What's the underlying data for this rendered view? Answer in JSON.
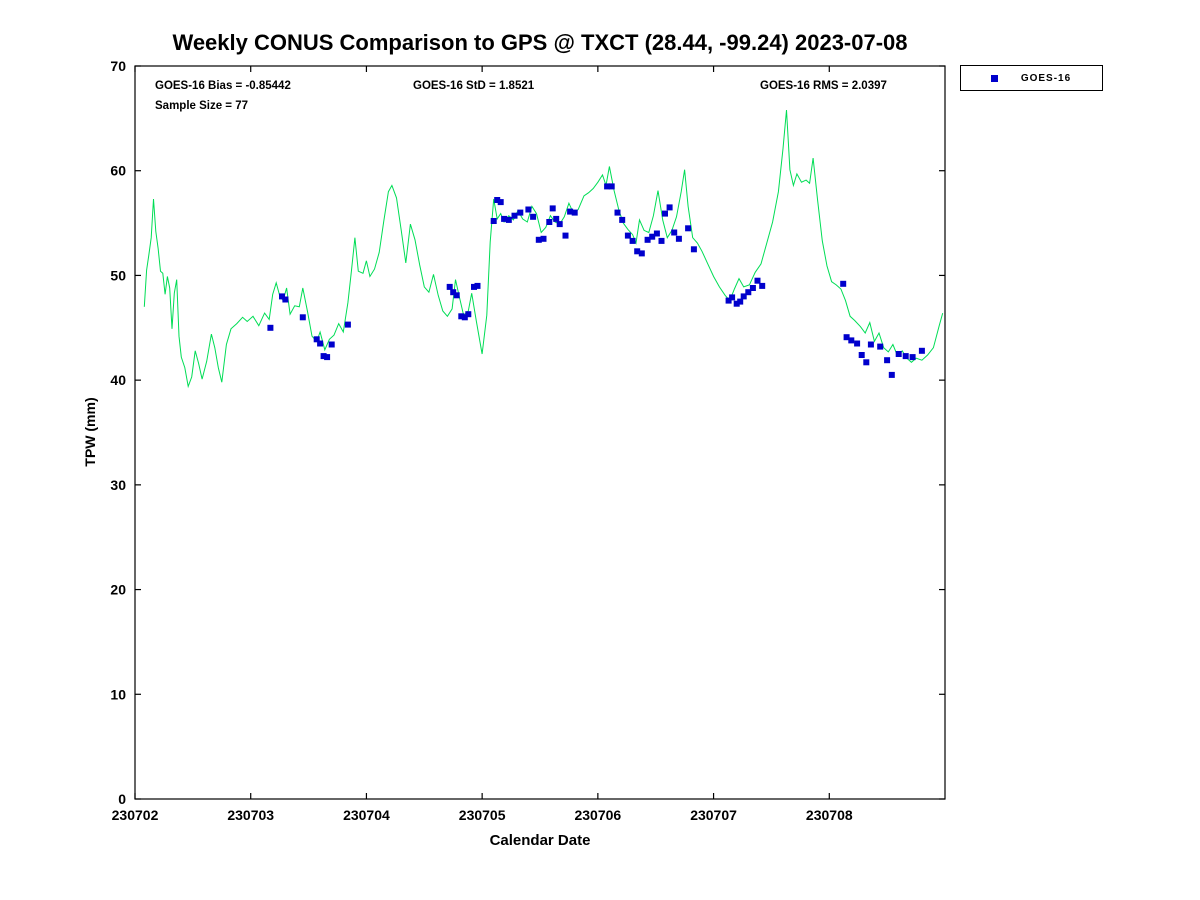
{
  "chart_data": {
    "type": "line+scatter",
    "title": "Weekly CONUS Comparison to GPS @ TXCT (28.44, -99.24) 2023-07-08",
    "xlabel": "Calendar Date",
    "ylabel": "TPW (mm)",
    "xlim": [
      0,
      7
    ],
    "ylim": [
      0,
      70
    ],
    "x_ticks": [
      0,
      1,
      2,
      3,
      4,
      5,
      6
    ],
    "x_tick_labels": [
      "230702",
      "230703",
      "230704",
      "230705",
      "230706",
      "230707",
      "230708"
    ],
    "y_ticks": [
      0,
      10,
      20,
      30,
      40,
      50,
      60,
      70
    ],
    "y_tick_labels": [
      "0",
      "10",
      "20",
      "30",
      "40",
      "50",
      "60",
      "70"
    ],
    "grid": false,
    "axis_color": "#000000",
    "annotations": {
      "bias": "GOES-16 Bias = -0.85442",
      "std": "GOES-16 StD = 1.8521",
      "rms": "GOES-16 RMS = 2.0397",
      "sample_size": "Sample Size = 77"
    },
    "legend": {
      "position": "outside-top-right",
      "entries": [
        {
          "label": "GOES-16",
          "marker": "square",
          "color": "#0000cc"
        }
      ]
    },
    "series": [
      {
        "name": "GPS",
        "type": "line",
        "color": "#00dd55",
        "width": 1,
        "points": [
          [
            0.08,
            47.0
          ],
          [
            0.1,
            50.5
          ],
          [
            0.12,
            52.0
          ],
          [
            0.14,
            53.6
          ],
          [
            0.16,
            57.3
          ],
          [
            0.18,
            54.2
          ],
          [
            0.2,
            52.6
          ],
          [
            0.22,
            50.4
          ],
          [
            0.24,
            50.2
          ],
          [
            0.26,
            48.2
          ],
          [
            0.28,
            49.9
          ],
          [
            0.3,
            48.8
          ],
          [
            0.32,
            44.9
          ],
          [
            0.34,
            48.3
          ],
          [
            0.36,
            49.6
          ],
          [
            0.38,
            44.2
          ],
          [
            0.4,
            42.2
          ],
          [
            0.43,
            41.2
          ],
          [
            0.46,
            39.4
          ],
          [
            0.49,
            40.3
          ],
          [
            0.52,
            42.8
          ],
          [
            0.55,
            41.6
          ],
          [
            0.58,
            40.1
          ],
          [
            0.62,
            41.8
          ],
          [
            0.66,
            44.4
          ],
          [
            0.69,
            43.1
          ],
          [
            0.72,
            41.2
          ],
          [
            0.75,
            39.8
          ],
          [
            0.79,
            43.4
          ],
          [
            0.83,
            44.9
          ],
          [
            0.88,
            45.4
          ],
          [
            0.93,
            46.0
          ],
          [
            0.97,
            45.6
          ],
          [
            1.02,
            46.1
          ],
          [
            1.07,
            45.2
          ],
          [
            1.12,
            46.4
          ],
          [
            1.16,
            45.8
          ],
          [
            1.19,
            48.2
          ],
          [
            1.22,
            49.3
          ],
          [
            1.25,
            48.1
          ],
          [
            1.28,
            47.6
          ],
          [
            1.31,
            48.8
          ],
          [
            1.34,
            46.3
          ],
          [
            1.38,
            47.1
          ],
          [
            1.42,
            47.0
          ],
          [
            1.45,
            48.8
          ],
          [
            1.49,
            46.6
          ],
          [
            1.53,
            44.2
          ],
          [
            1.57,
            43.7
          ],
          [
            1.6,
            44.6
          ],
          [
            1.64,
            42.9
          ],
          [
            1.68,
            43.9
          ],
          [
            1.72,
            44.3
          ],
          [
            1.76,
            45.4
          ],
          [
            1.8,
            44.6
          ],
          [
            1.84,
            47.4
          ],
          [
            1.87,
            50.4
          ],
          [
            1.9,
            53.6
          ],
          [
            1.93,
            50.4
          ],
          [
            1.97,
            50.2
          ],
          [
            2.0,
            51.4
          ],
          [
            2.03,
            49.9
          ],
          [
            2.07,
            50.6
          ],
          [
            2.11,
            52.2
          ],
          [
            2.15,
            55.2
          ],
          [
            2.19,
            58.0
          ],
          [
            2.22,
            58.6
          ],
          [
            2.26,
            57.4
          ],
          [
            2.3,
            54.4
          ],
          [
            2.34,
            51.2
          ],
          [
            2.38,
            54.9
          ],
          [
            2.42,
            53.4
          ],
          [
            2.46,
            51.0
          ],
          [
            2.5,
            48.9
          ],
          [
            2.54,
            48.4
          ],
          [
            2.58,
            50.1
          ],
          [
            2.62,
            48.1
          ],
          [
            2.66,
            46.6
          ],
          [
            2.7,
            46.1
          ],
          [
            2.74,
            46.8
          ],
          [
            2.77,
            49.6
          ],
          [
            2.8,
            48.1
          ],
          [
            2.84,
            46.2
          ],
          [
            2.88,
            46.6
          ],
          [
            2.91,
            48.3
          ],
          [
            2.95,
            45.6
          ],
          [
            3.0,
            42.5
          ],
          [
            3.04,
            46.2
          ],
          [
            3.07,
            53.2
          ],
          [
            3.1,
            57.3
          ],
          [
            3.13,
            55.4
          ],
          [
            3.16,
            55.9
          ],
          [
            3.19,
            55.1
          ],
          [
            3.23,
            55.7
          ],
          [
            3.27,
            55.3
          ],
          [
            3.31,
            56.2
          ],
          [
            3.35,
            55.4
          ],
          [
            3.39,
            55.1
          ],
          [
            3.43,
            56.6
          ],
          [
            3.47,
            55.9
          ],
          [
            3.51,
            54.1
          ],
          [
            3.55,
            54.6
          ],
          [
            3.59,
            55.7
          ],
          [
            3.63,
            55.1
          ],
          [
            3.67,
            54.9
          ],
          [
            3.71,
            55.6
          ],
          [
            3.75,
            56.9
          ],
          [
            3.79,
            55.9
          ],
          [
            3.83,
            56.3
          ],
          [
            3.88,
            57.6
          ],
          [
            3.92,
            57.9
          ],
          [
            3.96,
            58.3
          ],
          [
            4.0,
            58.9
          ],
          [
            4.04,
            59.6
          ],
          [
            4.07,
            58.6
          ],
          [
            4.1,
            60.4
          ],
          [
            4.14,
            58.1
          ],
          [
            4.18,
            56.3
          ],
          [
            4.22,
            55.0
          ],
          [
            4.26,
            54.4
          ],
          [
            4.3,
            53.9
          ],
          [
            4.33,
            53.1
          ],
          [
            4.36,
            55.3
          ],
          [
            4.4,
            54.3
          ],
          [
            4.44,
            54.1
          ],
          [
            4.48,
            55.7
          ],
          [
            4.52,
            58.1
          ],
          [
            4.56,
            55.3
          ],
          [
            4.6,
            53.6
          ],
          [
            4.64,
            54.3
          ],
          [
            4.68,
            55.6
          ],
          [
            4.72,
            58.0
          ],
          [
            4.75,
            60.1
          ],
          [
            4.78,
            56.6
          ],
          [
            4.82,
            53.6
          ],
          [
            4.86,
            53.1
          ],
          [
            4.9,
            52.3
          ],
          [
            4.95,
            51.1
          ],
          [
            5.0,
            49.9
          ],
          [
            5.05,
            48.9
          ],
          [
            5.1,
            48.1
          ],
          [
            5.14,
            47.6
          ],
          [
            5.18,
            48.7
          ],
          [
            5.22,
            49.7
          ],
          [
            5.26,
            48.9
          ],
          [
            5.31,
            49.1
          ],
          [
            5.36,
            50.3
          ],
          [
            5.41,
            51.1
          ],
          [
            5.46,
            53.1
          ],
          [
            5.51,
            55.1
          ],
          [
            5.56,
            58.0
          ],
          [
            5.6,
            62.1
          ],
          [
            5.63,
            65.8
          ],
          [
            5.66,
            60.1
          ],
          [
            5.69,
            58.6
          ],
          [
            5.72,
            59.7
          ],
          [
            5.76,
            58.9
          ],
          [
            5.8,
            59.1
          ],
          [
            5.83,
            58.8
          ],
          [
            5.86,
            61.2
          ],
          [
            5.9,
            57.1
          ],
          [
            5.94,
            53.3
          ],
          [
            5.98,
            50.9
          ],
          [
            6.02,
            49.4
          ],
          [
            6.06,
            49.1
          ],
          [
            6.1,
            48.7
          ],
          [
            6.14,
            47.6
          ],
          [
            6.18,
            46.1
          ],
          [
            6.22,
            45.7
          ],
          [
            6.27,
            45.1
          ],
          [
            6.31,
            44.5
          ],
          [
            6.35,
            45.5
          ],
          [
            6.39,
            43.7
          ],
          [
            6.43,
            44.5
          ],
          [
            6.47,
            43.1
          ],
          [
            6.51,
            42.7
          ],
          [
            6.55,
            43.4
          ],
          [
            6.59,
            42.3
          ],
          [
            6.63,
            42.8
          ],
          [
            6.67,
            42.1
          ],
          [
            6.71,
            41.7
          ],
          [
            6.75,
            42.1
          ],
          [
            6.8,
            41.9
          ],
          [
            6.85,
            42.4
          ],
          [
            6.9,
            43.1
          ],
          [
            6.95,
            45.2
          ],
          [
            6.98,
            46.4
          ]
        ]
      },
      {
        "name": "GOES-16",
        "type": "scatter",
        "marker": "square",
        "color": "#0000cc",
        "size": 6,
        "points": [
          [
            1.17,
            45.0
          ],
          [
            1.27,
            48.0
          ],
          [
            1.3,
            47.7
          ],
          [
            1.45,
            46.0
          ],
          [
            1.57,
            43.9
          ],
          [
            1.6,
            43.5
          ],
          [
            1.63,
            42.3
          ],
          [
            1.66,
            42.2
          ],
          [
            1.7,
            43.4
          ],
          [
            1.84,
            45.3
          ],
          [
            2.72,
            48.9
          ],
          [
            2.75,
            48.4
          ],
          [
            2.78,
            48.1
          ],
          [
            2.82,
            46.1
          ],
          [
            2.85,
            46.0
          ],
          [
            2.88,
            46.3
          ],
          [
            2.93,
            48.9
          ],
          [
            2.96,
            49.0
          ],
          [
            3.1,
            55.2
          ],
          [
            3.13,
            57.2
          ],
          [
            3.16,
            57.0
          ],
          [
            3.19,
            55.4
          ],
          [
            3.23,
            55.3
          ],
          [
            3.28,
            55.7
          ],
          [
            3.33,
            56.0
          ],
          [
            3.4,
            56.3
          ],
          [
            3.44,
            55.6
          ],
          [
            3.49,
            53.4
          ],
          [
            3.53,
            53.5
          ],
          [
            3.58,
            55.1
          ],
          [
            3.61,
            56.4
          ],
          [
            3.64,
            55.4
          ],
          [
            3.67,
            54.9
          ],
          [
            3.72,
            53.8
          ],
          [
            3.76,
            56.1
          ],
          [
            3.8,
            56.0
          ],
          [
            4.08,
            58.5
          ],
          [
            4.12,
            58.5
          ],
          [
            4.17,
            56.0
          ],
          [
            4.21,
            55.3
          ],
          [
            4.26,
            53.8
          ],
          [
            4.3,
            53.3
          ],
          [
            4.34,
            52.3
          ],
          [
            4.38,
            52.1
          ],
          [
            4.43,
            53.4
          ],
          [
            4.47,
            53.7
          ],
          [
            4.51,
            54.0
          ],
          [
            4.55,
            53.3
          ],
          [
            4.58,
            55.9
          ],
          [
            4.62,
            56.5
          ],
          [
            4.66,
            54.1
          ],
          [
            4.7,
            53.5
          ],
          [
            4.78,
            54.5
          ],
          [
            4.83,
            52.5
          ],
          [
            5.13,
            47.6
          ],
          [
            5.16,
            47.9
          ],
          [
            5.2,
            47.3
          ],
          [
            5.23,
            47.5
          ],
          [
            5.26,
            48.0
          ],
          [
            5.3,
            48.4
          ],
          [
            5.34,
            48.8
          ],
          [
            5.38,
            49.5
          ],
          [
            5.42,
            49.0
          ],
          [
            6.12,
            49.2
          ],
          [
            6.15,
            44.1
          ],
          [
            6.19,
            43.8
          ],
          [
            6.24,
            43.5
          ],
          [
            6.28,
            42.4
          ],
          [
            6.32,
            41.7
          ],
          [
            6.36,
            43.4
          ],
          [
            6.44,
            43.2
          ],
          [
            6.5,
            41.9
          ],
          [
            6.54,
            40.5
          ],
          [
            6.6,
            42.5
          ],
          [
            6.66,
            42.3
          ],
          [
            6.72,
            42.2
          ],
          [
            6.8,
            42.8
          ]
        ]
      }
    ]
  }
}
